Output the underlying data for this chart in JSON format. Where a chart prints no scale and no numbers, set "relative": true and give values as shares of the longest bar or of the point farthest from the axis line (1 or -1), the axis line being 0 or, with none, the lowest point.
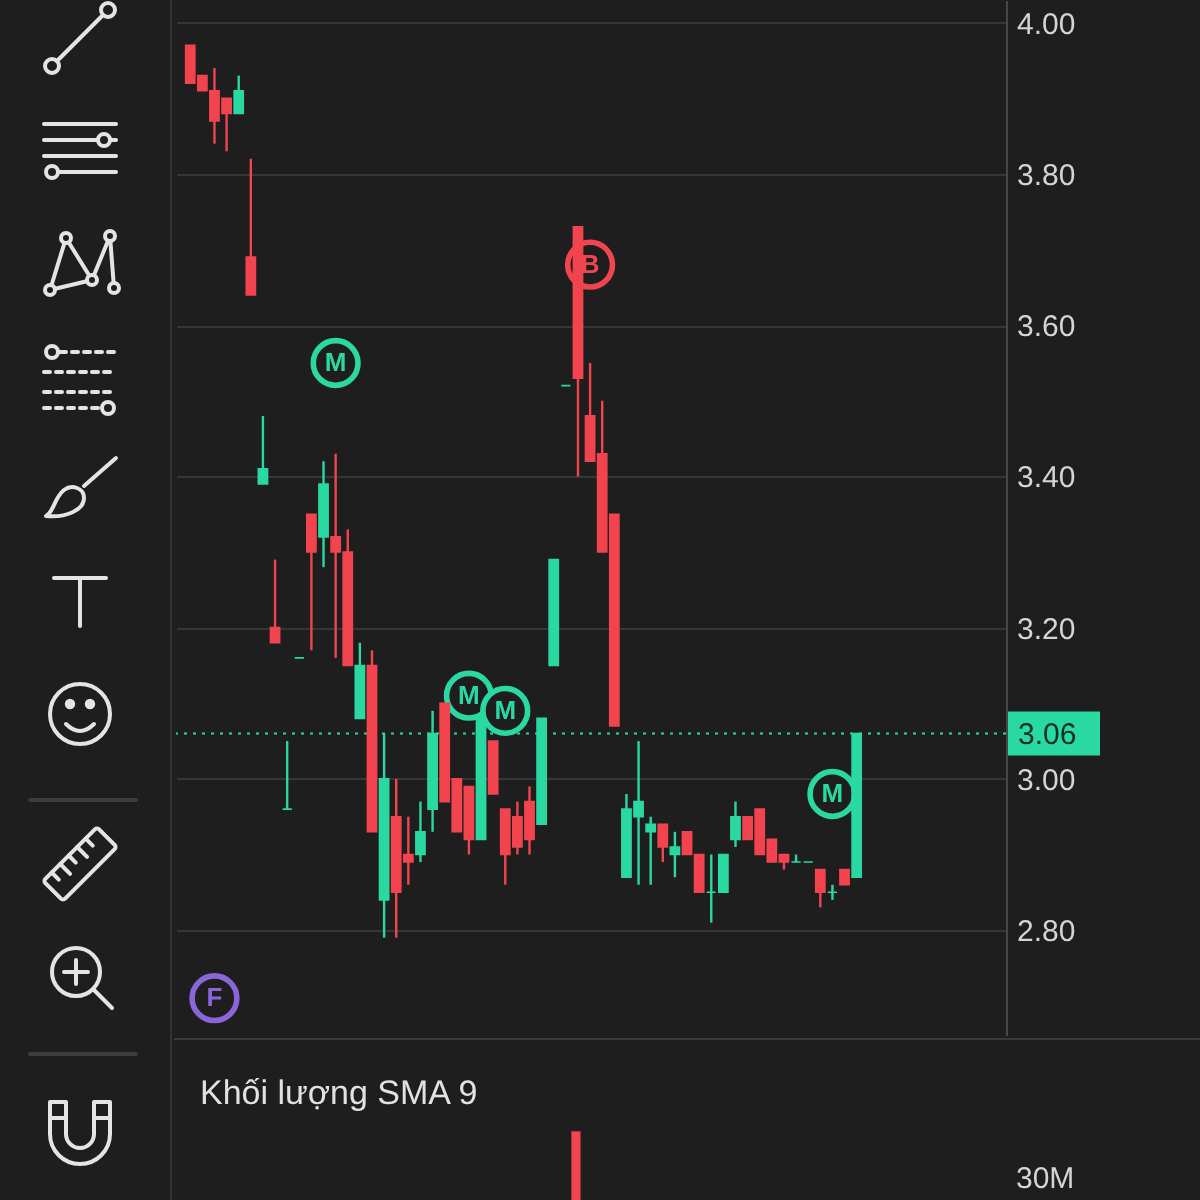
{
  "chart_data": [
    {
      "type": "candlestick",
      "categories": [
        null,
        null,
        null,
        null,
        null,
        null,
        null,
        null,
        null,
        null,
        null,
        null,
        null,
        null,
        null,
        null,
        null,
        null,
        null,
        null,
        null,
        null,
        null,
        null,
        null,
        null,
        null,
        null,
        null,
        null,
        null,
        null,
        null,
        null,
        null,
        null,
        null,
        null,
        null,
        null,
        null,
        null,
        null,
        null,
        null,
        null,
        null,
        null,
        null,
        null,
        null,
        null,
        null,
        null,
        null,
        null
      ],
      "ohlc": [
        [
          3.97,
          3.97,
          3.92,
          3.92
        ],
        [
          3.93,
          3.93,
          3.91,
          3.91
        ],
        [
          3.91,
          3.94,
          3.84,
          3.87
        ],
        [
          3.9,
          3.9,
          3.83,
          3.88
        ],
        [
          3.88,
          3.93,
          3.88,
          3.91
        ],
        [
          3.69,
          3.82,
          3.64,
          3.64
        ],
        [
          3.39,
          3.48,
          3.39,
          3.41
        ],
        [
          3.2,
          3.29,
          3.18,
          3.18
        ],
        [
          2.96,
          3.05,
          2.96,
          2.96
        ],
        [
          3.16,
          3.16,
          3.16,
          3.16
        ],
        [
          3.35,
          3.35,
          3.17,
          3.3
        ],
        [
          3.32,
          3.42,
          3.28,
          3.39
        ],
        [
          3.32,
          3.43,
          3.16,
          3.3
        ],
        [
          3.3,
          3.33,
          3.15,
          3.15
        ],
        [
          3.08,
          3.18,
          3.08,
          3.15
        ],
        [
          3.15,
          3.17,
          2.93,
          2.93
        ],
        [
          2.84,
          3.06,
          2.79,
          3
        ],
        [
          2.95,
          3,
          2.79,
          2.85
        ],
        [
          2.9,
          2.95,
          2.86,
          2.89
        ],
        [
          2.9,
          2.97,
          2.89,
          2.93
        ],
        [
          2.96,
          3.09,
          2.93,
          3.06
        ],
        [
          3.1,
          3.1,
          2.97,
          2.97
        ],
        [
          3,
          3,
          2.93,
          2.93
        ],
        [
          2.99,
          2.99,
          2.9,
          2.92
        ],
        [
          2.92,
          3.08,
          2.92,
          3.08
        ],
        [
          3.05,
          3.05,
          2.98,
          2.98
        ],
        [
          2.96,
          2.96,
          2.86,
          2.9
        ],
        [
          2.95,
          2.97,
          2.9,
          2.91
        ],
        [
          2.97,
          2.99,
          2.9,
          2.92
        ],
        [
          2.94,
          3.08,
          2.94,
          3.08
        ],
        [
          3.15,
          3.29,
          3.15,
          3.29
        ],
        [
          3.52,
          3.52,
          3.52,
          3.52
        ],
        [
          3.73,
          3.73,
          3.4,
          3.53
        ],
        [
          3.48,
          3.55,
          3.42,
          3.42
        ],
        [
          3.43,
          3.5,
          3.3,
          3.3
        ],
        [
          3.35,
          3.35,
          3.07,
          3.07
        ],
        [
          2.87,
          2.98,
          2.87,
          2.96
        ],
        [
          2.95,
          3.05,
          2.86,
          2.97
        ],
        [
          2.93,
          2.95,
          2.86,
          2.94
        ],
        [
          2.94,
          2.94,
          2.89,
          2.91
        ],
        [
          2.9,
          2.93,
          2.87,
          2.91
        ],
        [
          2.93,
          2.93,
          2.9,
          2.9
        ],
        [
          2.9,
          2.9,
          2.85,
          2.85
        ],
        [
          2.85,
          2.9,
          2.81,
          2.85
        ],
        [
          2.85,
          2.9,
          2.85,
          2.9
        ],
        [
          2.92,
          2.97,
          2.91,
          2.95
        ],
        [
          2.95,
          2.95,
          2.92,
          2.92
        ],
        [
          2.96,
          2.96,
          2.9,
          2.9
        ],
        [
          2.92,
          2.92,
          2.89,
          2.89
        ],
        [
          2.9,
          2.9,
          2.88,
          2.89
        ],
        [
          2.89,
          2.9,
          2.89,
          2.89
        ],
        [
          2.89,
          2.89,
          2.89,
          2.89
        ],
        [
          2.88,
          2.88,
          2.83,
          2.85
        ],
        [
          2.85,
          2.86,
          2.84,
          2.85
        ],
        [
          2.88,
          2.88,
          2.86,
          2.86
        ],
        [
          2.87,
          3.06,
          2.87,
          3.06
        ]
      ],
      "colors": [
        "#f2444f",
        "#f2444f",
        "#f2444f",
        "#f2444f",
        "#2ad8a2",
        "#f2444f",
        "#2ad8a2",
        "#f2444f",
        "#2ad8a2",
        "#2ad8a2",
        "#f2444f",
        "#2ad8a2",
        "#f2444f",
        "#f2444f",
        "#2ad8a2",
        "#f2444f",
        "#2ad8a2",
        "#f2444f",
        "#f2444f",
        "#2ad8a2",
        "#2ad8a2",
        "#f2444f",
        "#f2444f",
        "#f2444f",
        "#2ad8a2",
        "#f2444f",
        "#f2444f",
        "#f2444f",
        "#f2444f",
        "#2ad8a2",
        "#2ad8a2",
        "#2ad8a2",
        "#f2444f",
        "#f2444f",
        "#f2444f",
        "#f2444f",
        "#2ad8a2",
        "#2ad8a2",
        "#2ad8a2",
        "#f2444f",
        "#2ad8a2",
        "#f2444f",
        "#f2444f",
        "#2ad8a2",
        "#2ad8a2",
        "#2ad8a2",
        "#f2444f",
        "#f2444f",
        "#f2444f",
        "#f2444f",
        "#2ad8a2",
        "#2ad8a2",
        "#f2444f",
        "#2ad8a2",
        "#f2444f",
        "#2ad8a2"
      ],
      "ylim": [
        2.66,
        4.03
      ],
      "yticks": [
        {
          "value": 2.8,
          "label": "2.80"
        },
        {
          "value": 3,
          "label": "3.00"
        },
        {
          "value": 3.2,
          "label": "3.20"
        },
        {
          "value": 3.4,
          "label": "3.40"
        },
        {
          "value": 3.6,
          "label": "3.60"
        },
        {
          "value": 3.8,
          "label": "3.80"
        },
        {
          "value": 4,
          "label": "4.00"
        }
      ],
      "grid": "y",
      "tick_labels": "y",
      "series": [
        {
          "type": "scatter",
          "color": "#2ad8a2",
          "marker": "circle",
          "values": [
            null,
            null,
            null,
            null,
            null,
            null,
            null,
            null,
            null,
            null,
            null,
            null,
            3.55,
            null,
            null,
            null,
            null,
            null,
            null,
            null,
            null,
            null,
            null,
            3.11,
            null,
            null,
            3.09,
            null,
            null,
            null,
            null,
            null,
            null,
            null,
            null,
            null,
            null,
            null,
            null,
            null,
            null,
            null,
            null,
            null,
            null,
            null,
            null,
            null,
            null,
            null,
            null,
            null,
            null,
            2.98,
            null,
            null
          ],
          "value_labels": [
            null,
            null,
            null,
            null,
            null,
            null,
            null,
            null,
            null,
            null,
            null,
            null,
            "M",
            null,
            null,
            null,
            null,
            null,
            null,
            null,
            null,
            null,
            null,
            "M",
            null,
            null,
            "M",
            null,
            null,
            null,
            null,
            null,
            null,
            null,
            null,
            null,
            null,
            null,
            null,
            null,
            null,
            null,
            null,
            null,
            null,
            null,
            null,
            null,
            null,
            null,
            null,
            null,
            null,
            "M",
            null,
            null
          ]
        },
        {
          "type": "scatter",
          "color": "#f2444f",
          "marker": "circle",
          "values": [
            null,
            null,
            null,
            null,
            null,
            null,
            null,
            null,
            null,
            null,
            null,
            null,
            null,
            null,
            null,
            null,
            null,
            null,
            null,
            null,
            null,
            null,
            null,
            null,
            null,
            null,
            null,
            null,
            null,
            null,
            null,
            null,
            null,
            3.68,
            null,
            null,
            null,
            null,
            null,
            null,
            null,
            null,
            null,
            null,
            null,
            null,
            null,
            null,
            null,
            null,
            null,
            null,
            null,
            null,
            null,
            null
          ],
          "value_labels": [
            null,
            null,
            null,
            null,
            null,
            null,
            null,
            null,
            null,
            null,
            null,
            null,
            null,
            null,
            null,
            null,
            null,
            null,
            null,
            null,
            null,
            null,
            null,
            null,
            null,
            null,
            null,
            null,
            null,
            null,
            null,
            null,
            null,
            "B",
            null,
            null,
            null,
            null,
            null,
            null,
            null,
            null,
            null,
            null,
            null,
            null,
            null,
            null,
            null,
            null,
            null,
            null,
            null,
            null,
            null,
            null
          ]
        },
        {
          "type": "scatter",
          "color": "#8a66d9",
          "marker": "circle",
          "values": [
            null,
            null,
            2.71,
            null,
            null,
            null,
            null,
            null,
            null,
            null,
            null,
            null,
            null,
            null,
            null,
            null,
            null,
            null,
            null,
            null,
            null,
            null,
            null,
            null,
            null,
            null,
            null,
            null,
            null,
            null,
            null,
            null,
            null,
            null,
            null,
            null,
            null,
            null,
            null,
            null,
            null,
            null,
            null,
            null,
            null,
            null,
            null,
            null,
            null,
            null,
            null,
            null,
            null,
            null,
            null,
            null
          ],
          "value_labels": [
            null,
            null,
            "F",
            null,
            null,
            null,
            null,
            null,
            null,
            null,
            null,
            null,
            null,
            null,
            null,
            null,
            null,
            null,
            null,
            null,
            null,
            null,
            null,
            null,
            null,
            null,
            null,
            null,
            null,
            null,
            null,
            null,
            null,
            null,
            null,
            null,
            null,
            null,
            null,
            null,
            null,
            null,
            null,
            null,
            null,
            null,
            null,
            null,
            null,
            null,
            null,
            null,
            null,
            null,
            null,
            null
          ]
        }
      ],
      "ref_lines": [
        {
          "axis": "y",
          "value": 3.06,
          "label": "3.06",
          "color": "#2ad8a2",
          "line_style": "dotted"
        }
      ]
    },
    {
      "type": "bar",
      "title": "Khối lượng SMA 9",
      "categories": [
        null,
        null,
        null,
        null,
        null,
        null,
        null,
        null,
        null,
        null,
        null,
        null,
        null,
        null,
        null,
        null,
        null,
        null,
        null,
        null,
        null,
        null,
        null,
        null,
        null,
        null,
        null,
        null,
        null,
        null,
        null,
        null,
        null,
        null,
        null,
        null,
        null,
        null,
        null,
        null,
        null,
        null,
        null,
        null,
        null,
        null,
        null,
        null,
        null,
        null,
        null,
        null,
        null,
        null,
        null,
        null
      ],
      "values": [
        null,
        null,
        null,
        null,
        null,
        null,
        null,
        null,
        null,
        null,
        null,
        null,
        null,
        null,
        null,
        null,
        null,
        null,
        null,
        null,
        null,
        null,
        null,
        null,
        null,
        null,
        null,
        null,
        null,
        null,
        null,
        null,
        1,
        null,
        null,
        null,
        null,
        null,
        null,
        null,
        null,
        null,
        null,
        null,
        null,
        null,
        null,
        null,
        null,
        null,
        null,
        null,
        null,
        null,
        null,
        null
      ],
      "color": "#f2444f",
      "relative": true,
      "tick_labels": false,
      "annotations": [
        "30M"
      ]
    }
  ]
}
